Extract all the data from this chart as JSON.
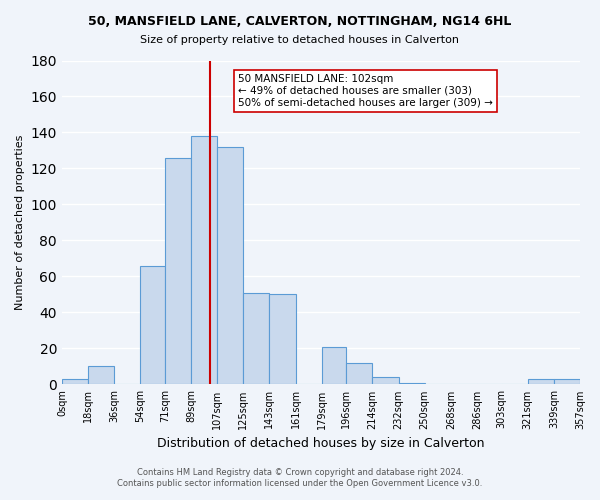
{
  "title1": "50, MANSFIELD LANE, CALVERTON, NOTTINGHAM, NG14 6HL",
  "title2": "Size of property relative to detached houses in Calverton",
  "xlabel": "Distribution of detached houses by size in Calverton",
  "ylabel": "Number of detached properties",
  "bar_color": "#c9d9ed",
  "bar_edge_color": "#5b9bd5",
  "background_color": "#f0f4fa",
  "grid_color": "#ffffff",
  "bin_edges": [
    0,
    18,
    36,
    54,
    71,
    89,
    107,
    125,
    143,
    161,
    179,
    196,
    214,
    232,
    250,
    268,
    286,
    303,
    321,
    339,
    357
  ],
  "bin_labels": [
    "0sqm",
    "18sqm",
    "36sqm",
    "54sqm",
    "71sqm",
    "89sqm",
    "107sqm",
    "125sqm",
    "143sqm",
    "161sqm",
    "179sqm",
    "196sqm",
    "214sqm",
    "232sqm",
    "250sqm",
    "268sqm",
    "286sqm",
    "303sqm",
    "321sqm",
    "339sqm",
    "357sqm"
  ],
  "counts": [
    3,
    10,
    0,
    66,
    126,
    138,
    132,
    51,
    50,
    0,
    21,
    12,
    4,
    1,
    0,
    0,
    0,
    0,
    3,
    3
  ],
  "property_size": 102,
  "vline_color": "#cc0000",
  "annotation_text": "50 MANSFIELD LANE: 102sqm\n← 49% of detached houses are smaller (303)\n50% of semi-detached houses are larger (309) →",
  "annotation_box_color": "#ffffff",
  "annotation_box_edge": "#cc0000",
  "ylim": [
    0,
    180
  ],
  "yticks": [
    0,
    20,
    40,
    60,
    80,
    100,
    120,
    140,
    160,
    180
  ],
  "footer_line1": "Contains HM Land Registry data © Crown copyright and database right 2024.",
  "footer_line2": "Contains public sector information licensed under the Open Government Licence v3.0."
}
